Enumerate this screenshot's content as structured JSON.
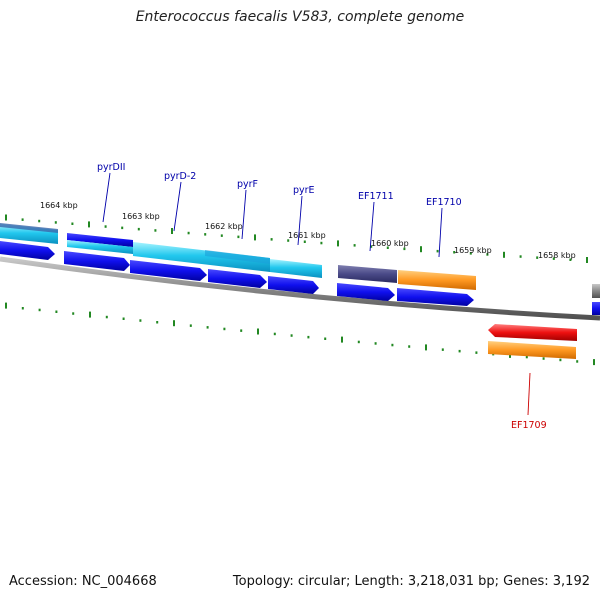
{
  "title": "Enterococcus faecalis V583, complete genome",
  "footer": {
    "accession": "Accession: NC_004668",
    "summary": "Topology: circular; Length: 3,218,031 bp; Genes: 3,192"
  },
  "ticks": [
    {
      "label": "1664 kbp"
    },
    {
      "label": "1663 kbp"
    },
    {
      "label": "1662 kbp"
    },
    {
      "label": "1661 kbp"
    },
    {
      "label": "1660 kbp"
    },
    {
      "label": "1659 kbp"
    },
    {
      "label": "1658 kbp"
    }
  ],
  "genes": [
    {
      "name": "pyrDII",
      "color": "#0000aa"
    },
    {
      "name": "pyrD-2",
      "color": "#0000aa"
    },
    {
      "name": "pyrF",
      "color": "#0000aa"
    },
    {
      "name": "pyrE",
      "color": "#0000aa"
    },
    {
      "name": "EF1711",
      "color": "#0000aa"
    },
    {
      "name": "EF1710",
      "color": "#0000aa"
    },
    {
      "name": "EF1709",
      "color": "#cc0000"
    }
  ],
  "colors": {
    "cyan": "#22bbee",
    "blue": "#1111ee",
    "navy": "#0000cc",
    "purple": "#4a4a8a",
    "orange": "#ff9922",
    "red": "#ee1111",
    "gray": "#888888",
    "tick": "#228822"
  }
}
